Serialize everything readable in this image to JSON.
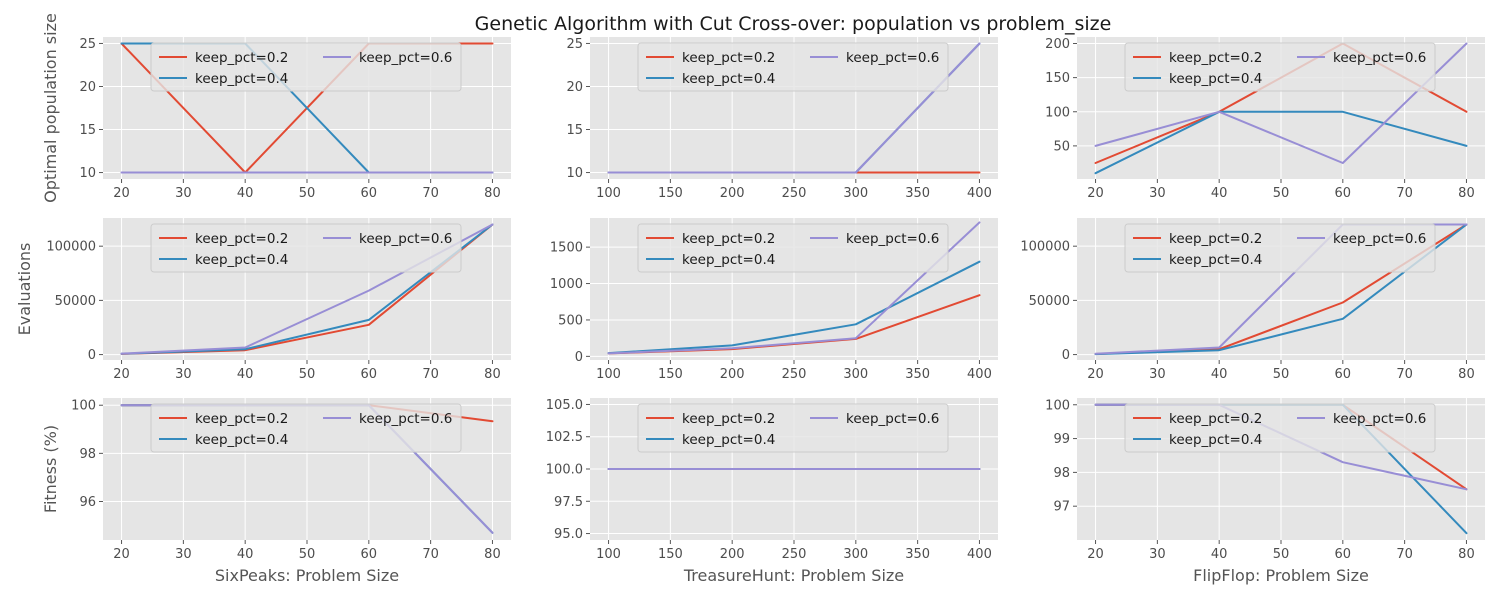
{
  "title": "Genetic Algorithm with Cut Cross-over: population vs problem_size",
  "colors": {
    "keep_pct=0.2": "#e24a33",
    "keep_pct=0.4": "#348abd",
    "keep_pct=0.6": "#988ed5"
  },
  "chart_data": [
    {
      "type": "line",
      "row": 0,
      "col": 0,
      "xlabel": "",
      "ylabel": "Optimal population size",
      "xlim": [
        17,
        83
      ],
      "ylim": [
        9.25,
        25.75
      ],
      "xticks": [
        20,
        30,
        40,
        50,
        60,
        70,
        80
      ],
      "yticks": [
        10,
        15,
        20,
        25
      ],
      "x": [
        20,
        40,
        60,
        80
      ],
      "series": [
        {
          "name": "keep_pct=0.2",
          "values": [
            25,
            10,
            25,
            25
          ]
        },
        {
          "name": "keep_pct=0.4",
          "values": [
            25,
            25,
            10,
            10
          ]
        },
        {
          "name": "keep_pct=0.6",
          "values": [
            10,
            10,
            10,
            10
          ]
        }
      ]
    },
    {
      "type": "line",
      "row": 0,
      "col": 1,
      "xlabel": "",
      "ylabel": "",
      "xlim": [
        85,
        415
      ],
      "ylim": [
        9.25,
        25.75
      ],
      "xticks": [
        100,
        150,
        200,
        250,
        300,
        350,
        400
      ],
      "yticks": [
        10,
        15,
        20,
        25
      ],
      "x": [
        100,
        200,
        300,
        400
      ],
      "series": [
        {
          "name": "keep_pct=0.2",
          "values": [
            10,
            10,
            10,
            10
          ]
        },
        {
          "name": "keep_pct=0.4",
          "values": [
            10,
            10,
            10,
            25
          ]
        },
        {
          "name": "keep_pct=0.6",
          "values": [
            10,
            10,
            10,
            25
          ]
        }
      ]
    },
    {
      "type": "line",
      "row": 0,
      "col": 2,
      "xlabel": "",
      "ylabel": "",
      "xlim": [
        17,
        83
      ],
      "ylim": [
        1.5,
        209.5
      ],
      "xticks": [
        20,
        30,
        40,
        50,
        60,
        70,
        80
      ],
      "yticks": [
        50,
        100,
        150,
        200
      ],
      "x": [
        20,
        40,
        60,
        80
      ],
      "series": [
        {
          "name": "keep_pct=0.2",
          "values": [
            25,
            100,
            200,
            100
          ]
        },
        {
          "name": "keep_pct=0.4",
          "values": [
            10,
            100,
            100,
            50
          ]
        },
        {
          "name": "keep_pct=0.6",
          "values": [
            50,
            100,
            25,
            200
          ]
        }
      ]
    },
    {
      "type": "line",
      "row": 1,
      "col": 0,
      "xlabel": "",
      "ylabel": "Evaluations",
      "xlim": [
        17,
        83
      ],
      "ylim": [
        -5000,
        126000
      ],
      "xticks": [
        20,
        30,
        40,
        50,
        60,
        70,
        80
      ],
      "yticks": [
        0,
        50000,
        100000
      ],
      "x": [
        20,
        40,
        60,
        80
      ],
      "series": [
        {
          "name": "keep_pct=0.2",
          "values": [
            600,
            4000,
            27500,
            120000
          ]
        },
        {
          "name": "keep_pct=0.4",
          "values": [
            700,
            5000,
            32000,
            120000
          ]
        },
        {
          "name": "keep_pct=0.6",
          "values": [
            900,
            6500,
            59000,
            120000
          ]
        }
      ]
    },
    {
      "type": "line",
      "row": 1,
      "col": 1,
      "xlabel": "",
      "ylabel": "",
      "xlim": [
        85,
        415
      ],
      "ylim": [
        -50,
        1900
      ],
      "xticks": [
        100,
        150,
        200,
        250,
        300,
        350,
        400
      ],
      "yticks": [
        0,
        500,
        1000,
        1500
      ],
      "x": [
        100,
        200,
        300,
        400
      ],
      "series": [
        {
          "name": "keep_pct=0.2",
          "values": [
            40,
            100,
            240,
            840
          ]
        },
        {
          "name": "keep_pct=0.4",
          "values": [
            45,
            150,
            440,
            1300
          ]
        },
        {
          "name": "keep_pct=0.6",
          "values": [
            40,
            110,
            250,
            1840
          ]
        }
      ]
    },
    {
      "type": "line",
      "row": 1,
      "col": 2,
      "xlabel": "",
      "ylabel": "",
      "xlim": [
        17,
        83
      ],
      "ylim": [
        -5000,
        126000
      ],
      "xticks": [
        20,
        30,
        40,
        50,
        60,
        70,
        80
      ],
      "yticks": [
        0,
        50000,
        100000
      ],
      "x": [
        20,
        40,
        60,
        80
      ],
      "series": [
        {
          "name": "keep_pct=0.2",
          "values": [
            500,
            5000,
            48000,
            120000
          ]
        },
        {
          "name": "keep_pct=0.4",
          "values": [
            400,
            4000,
            33000,
            120000
          ]
        },
        {
          "name": "keep_pct=0.6",
          "values": [
            800,
            6500,
            120000,
            120000
          ]
        }
      ]
    },
    {
      "type": "line",
      "row": 2,
      "col": 0,
      "xlabel": "SixPeaks: Problem Size",
      "ylabel": "Fitness (%)",
      "xlim": [
        17,
        83
      ],
      "ylim": [
        94.4,
        100.3
      ],
      "xticks": [
        20,
        30,
        40,
        50,
        60,
        70,
        80
      ],
      "yticks": [
        96,
        98,
        100
      ],
      "x": [
        20,
        40,
        60,
        80
      ],
      "series": [
        {
          "name": "keep_pct=0.2",
          "values": [
            100,
            100,
            100,
            99.33
          ]
        },
        {
          "name": "keep_pct=0.4",
          "values": [
            100,
            100,
            100,
            94.7
          ]
        },
        {
          "name": "keep_pct=0.6",
          "values": [
            100,
            100,
            100,
            94.7
          ]
        }
      ]
    },
    {
      "type": "line",
      "row": 2,
      "col": 1,
      "xlabel": "TreasureHunt: Problem Size",
      "ylabel": "",
      "xlim": [
        85,
        415
      ],
      "ylim": [
        94.5,
        105.5
      ],
      "xticks": [
        100,
        150,
        200,
        250,
        300,
        350,
        400
      ],
      "yticks": [
        95.0,
        97.5,
        100.0,
        102.5,
        105.0
      ],
      "ytick_labels": [
        "95.0",
        "97.5",
        "100.0",
        "102.5",
        "105.0"
      ],
      "x": [
        100,
        200,
        300,
        400
      ],
      "series": [
        {
          "name": "keep_pct=0.2",
          "values": [
            100,
            100,
            100,
            100
          ]
        },
        {
          "name": "keep_pct=0.4",
          "values": [
            100,
            100,
            100,
            100
          ]
        },
        {
          "name": "keep_pct=0.6",
          "values": [
            100,
            100,
            100,
            100
          ]
        }
      ]
    },
    {
      "type": "line",
      "row": 2,
      "col": 2,
      "xlabel": "FlipFlop: Problem Size",
      "ylabel": "",
      "xlim": [
        17,
        83
      ],
      "ylim": [
        96.0,
        100.2
      ],
      "xticks": [
        20,
        30,
        40,
        50,
        60,
        70,
        80
      ],
      "yticks": [
        97,
        98,
        99,
        100
      ],
      "x": [
        20,
        40,
        60,
        80
      ],
      "series": [
        {
          "name": "keep_pct=0.2",
          "values": [
            100,
            100,
            100,
            97.5
          ]
        },
        {
          "name": "keep_pct=0.4",
          "values": [
            100,
            100,
            100,
            96.2
          ]
        },
        {
          "name": "keep_pct=0.6",
          "values": [
            100,
            100,
            98.3,
            97.5
          ]
        }
      ]
    }
  ]
}
